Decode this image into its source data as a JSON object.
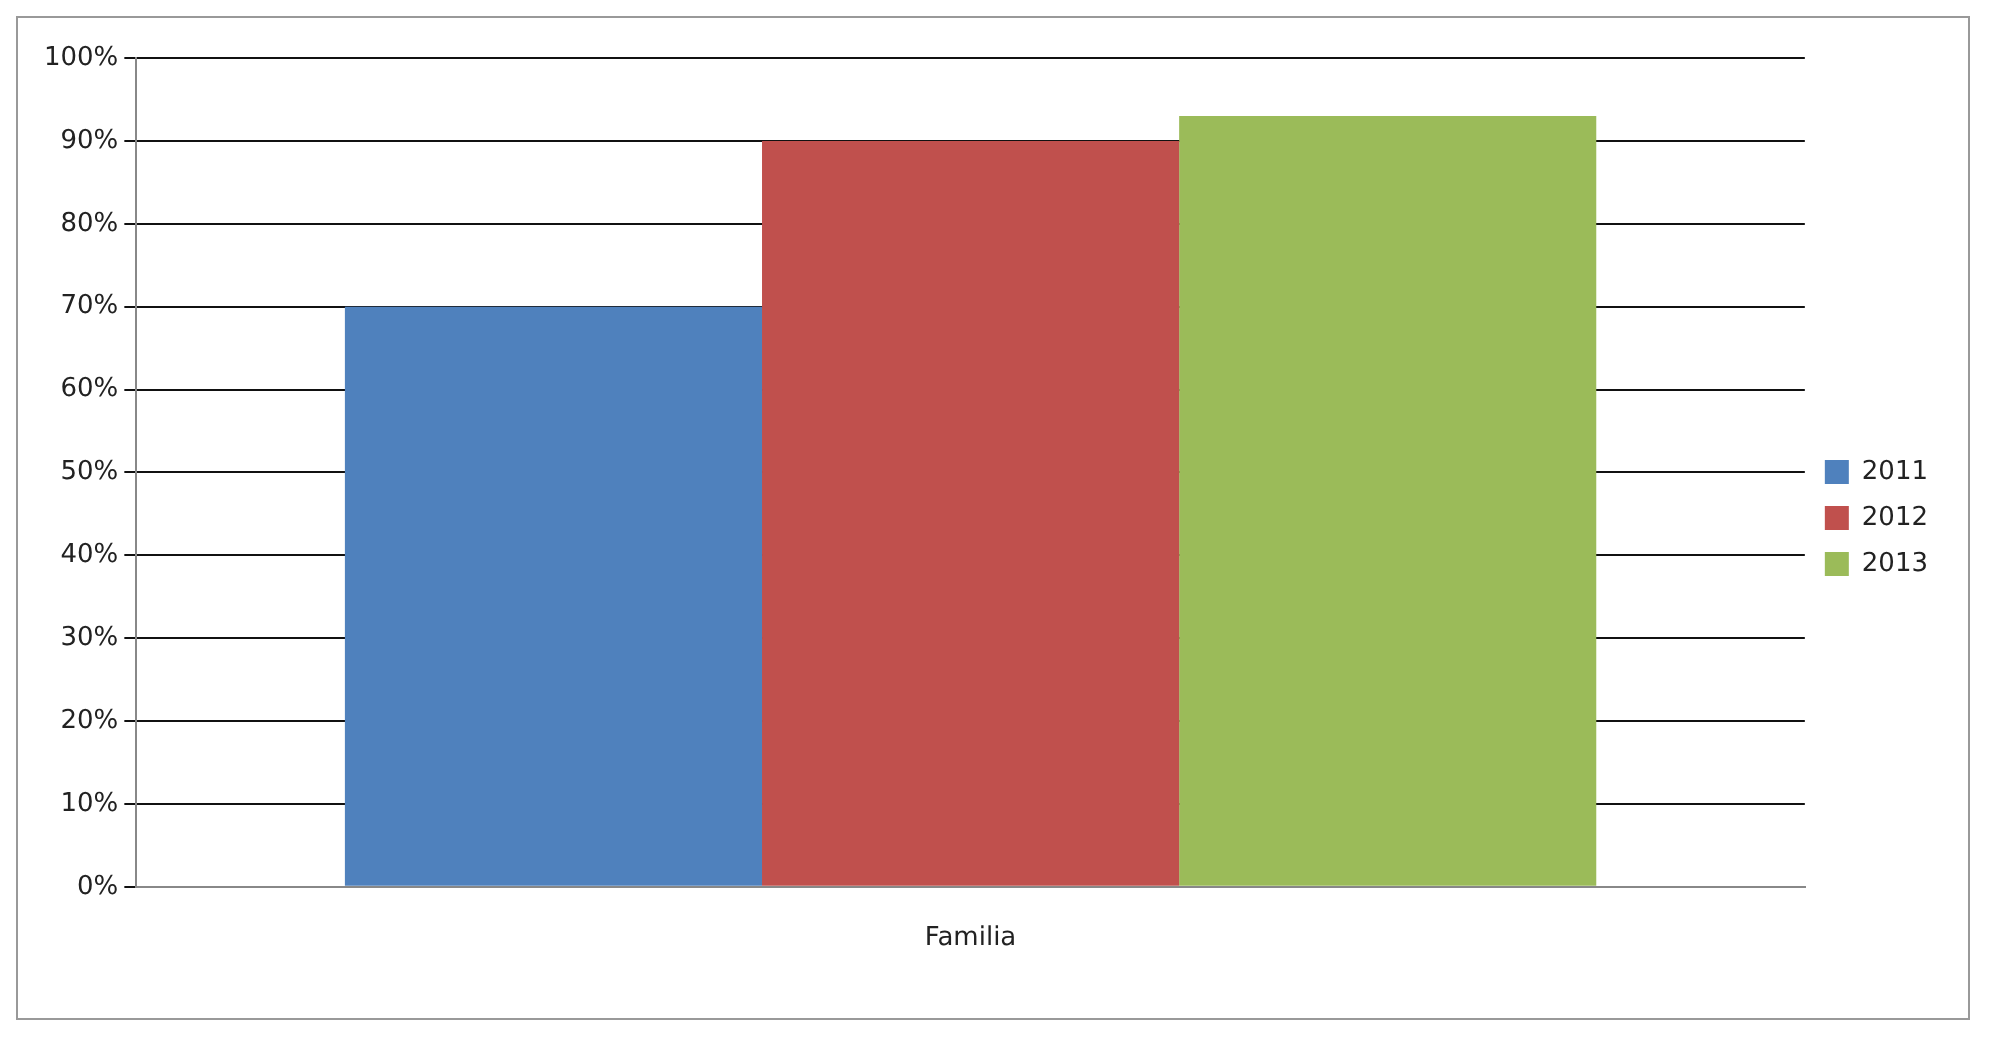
{
  "chart_data": {
    "type": "bar",
    "categories": [
      "Familia"
    ],
    "series": [
      {
        "name": "2011",
        "color": "#4f81bd",
        "values": [
          70
        ]
      },
      {
        "name": "2012",
        "color": "#c0504d",
        "values": [
          90
        ]
      },
      {
        "name": "2013",
        "color": "#9bbb59",
        "values": [
          93
        ]
      }
    ],
    "ylim": [
      0,
      100
    ],
    "yticks": [
      {
        "value": 0,
        "label": "0%"
      },
      {
        "value": 10,
        "label": "10%"
      },
      {
        "value": 20,
        "label": "20%"
      },
      {
        "value": 30,
        "label": "30%"
      },
      {
        "value": 40,
        "label": "40%"
      },
      {
        "value": 50,
        "label": "50%"
      },
      {
        "value": 60,
        "label": "60%"
      },
      {
        "value": 70,
        "label": "70%"
      },
      {
        "value": 80,
        "label": "80%"
      },
      {
        "value": 90,
        "label": "90%"
      },
      {
        "value": 100,
        "label": "100%"
      }
    ],
    "grid": "y",
    "legend": "right"
  }
}
